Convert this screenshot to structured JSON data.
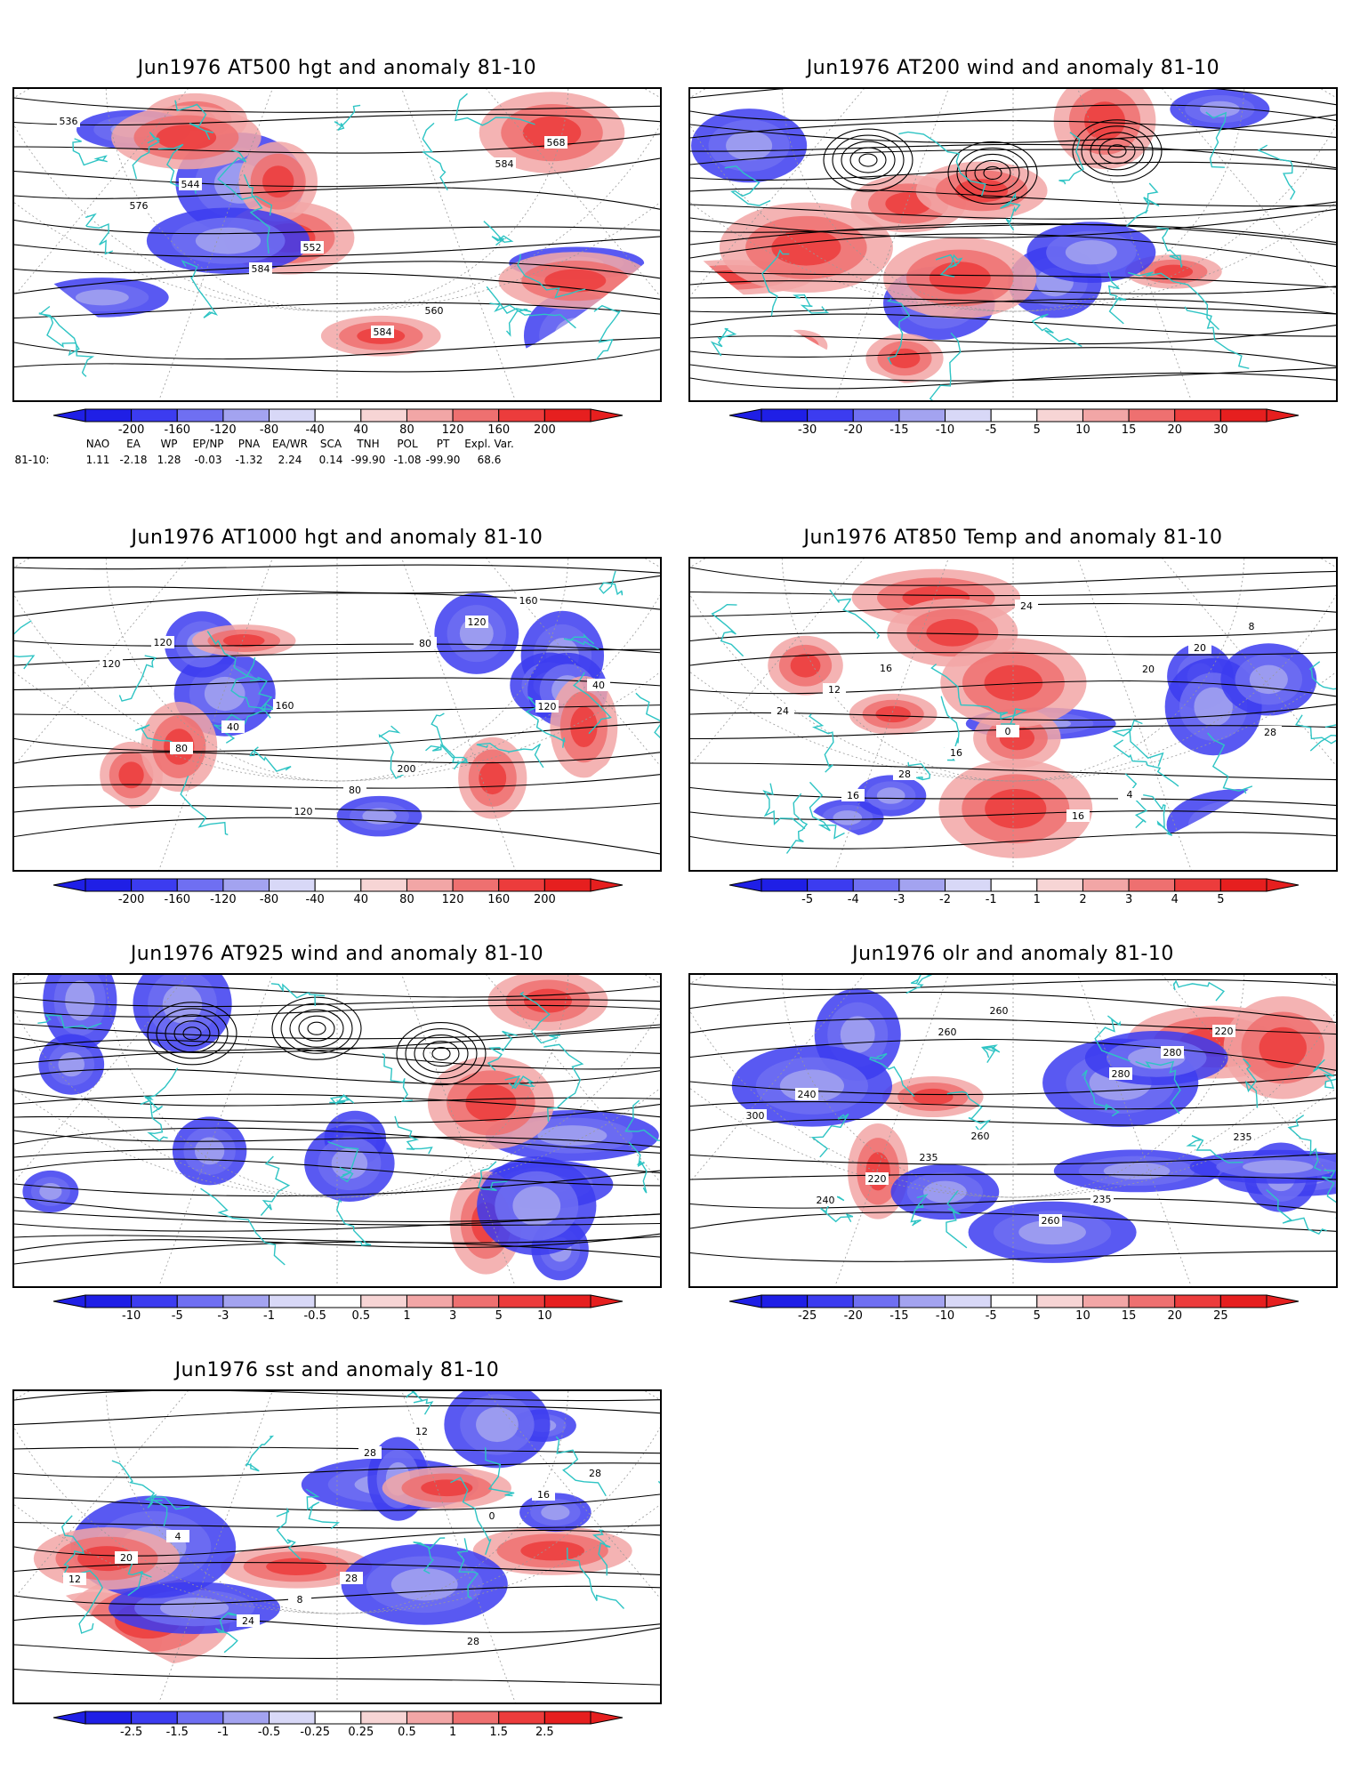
{
  "panels": [
    {
      "id": "p1",
      "title": "Jun1976 AT500 hgt and anomaly 81-10",
      "kind": "contour",
      "ticks": [
        "-200",
        "-160",
        "-120",
        "-80",
        "-40",
        "40",
        "80",
        "120",
        "160",
        "200"
      ],
      "contour_labels": [
        "536",
        "544",
        "552",
        "560",
        "568",
        "576",
        "584",
        "584",
        "584"
      ]
    },
    {
      "id": "p2",
      "title": "Jun1976 AT200 wind and anomaly 81-10",
      "kind": "stream",
      "ticks": [
        "-30",
        "-20",
        "-15",
        "-10",
        "-5",
        "5",
        "10",
        "15",
        "20",
        "30"
      ],
      "contour_labels": []
    },
    {
      "id": "p3",
      "title": "Jun1976 AT1000 hgt and anomaly 81-10",
      "kind": "contour",
      "ticks": [
        "-200",
        "-160",
        "-120",
        "-80",
        "-40",
        "40",
        "80",
        "120",
        "160",
        "200"
      ],
      "contour_labels": [
        "120",
        "160",
        "200",
        "160",
        "120",
        "40",
        "80",
        "120",
        "40",
        "80",
        "120",
        "80",
        "120"
      ]
    },
    {
      "id": "p4",
      "title": "Jun1976 AT850 Temp and anomaly 81-10",
      "kind": "contour",
      "ticks": [
        "-5",
        "-4",
        "-3",
        "-2",
        "-1",
        "1",
        "2",
        "3",
        "4",
        "5"
      ],
      "contour_labels": [
        "16",
        "0",
        "4",
        "8",
        "12",
        "16",
        "16",
        "20",
        "24",
        "28",
        "24",
        "20",
        "28",
        "16"
      ]
    },
    {
      "id": "p5",
      "title": "Jun1976 AT925 wind and anomaly 81-10",
      "kind": "stream",
      "ticks": [
        "-10",
        "-5",
        "-3",
        "-1",
        "-0.5",
        "0.5",
        "1",
        "3",
        "5",
        "10"
      ],
      "contour_labels": []
    },
    {
      "id": "p6",
      "title": "Jun1976 olr and anomaly 81-10",
      "kind": "contour",
      "ticks": [
        "-25",
        "-20",
        "-15",
        "-10",
        "-5",
        "5",
        "10",
        "15",
        "20",
        "25"
      ],
      "contour_labels": [
        "260",
        "235",
        "220",
        "240",
        "235",
        "260",
        "280",
        "300",
        "220",
        "260",
        "280",
        "235",
        "240",
        "260"
      ]
    },
    {
      "id": "p7",
      "title": "Jun1976 sst and anomaly 81-10",
      "kind": "contour",
      "ticks": [
        "-2.5",
        "-1.5",
        "-1",
        "-0.5",
        "-0.25",
        "0.25",
        "0.5",
        "1",
        "1.5",
        "2.5"
      ],
      "contour_labels": [
        "28",
        "28",
        "28",
        "4",
        "8",
        "12",
        "16",
        "20",
        "24",
        "28",
        "0",
        "12"
      ]
    }
  ],
  "teleconnection": {
    "row_label": "81-10:",
    "headers": [
      "NAO",
      "EA",
      "WP",
      "EP/NP",
      "PNA",
      "EA/WR",
      "SCA",
      "TNH",
      "POL",
      "PT",
      "Expl. Var."
    ],
    "values": [
      "1.11",
      "-2.18",
      "1.28",
      "-0.03",
      "-1.32",
      "2.24",
      "0.14",
      "-99.90",
      "-1.08",
      "-99.90",
      "68.6"
    ]
  },
  "colors": {
    "coast": "#2ec4c4",
    "neg": [
      "#1f1fe6",
      "#3c3cf0",
      "#6f6ff2",
      "#a3a3f0",
      "#d8d8f7"
    ],
    "pos": [
      "#f7d5d5",
      "#f2a6a6",
      "#ee7070",
      "#ec3c3c",
      "#e61f1f"
    ]
  }
}
